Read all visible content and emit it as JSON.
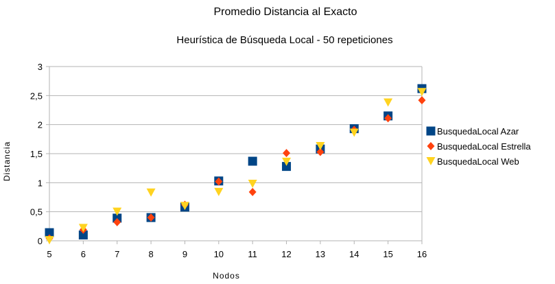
{
  "chart_data": {
    "type": "scatter",
    "title": "Promedio Distancia al Exacto",
    "subtitle": "Heurística de Búsqueda Local -  50 repeticiones",
    "xlabel": "Nodos",
    "ylabel": "Distancia",
    "x": [
      5,
      6,
      7,
      8,
      9,
      10,
      11,
      12,
      13,
      14,
      15,
      16
    ],
    "x_tick_labels": [
      "5",
      "6",
      "7",
      "8",
      "9",
      "10",
      "11",
      "12",
      "13",
      "14",
      "15",
      "16"
    ],
    "xlim": [
      5,
      16
    ],
    "ylim": [
      0,
      3
    ],
    "y_ticks": [
      0,
      0.5,
      1,
      1.5,
      2,
      2.5,
      3
    ],
    "y_tick_labels": [
      "0",
      "0,5",
      "1",
      "1,5",
      "2",
      "2,5",
      "3"
    ],
    "grid": "horizontal",
    "legend_position": "right",
    "series": [
      {
        "name": "BusquedaLocal Azar",
        "marker": "square",
        "color": "#004586",
        "values": [
          0.14,
          0.1,
          0.39,
          0.4,
          0.58,
          1.03,
          1.37,
          1.28,
          1.58,
          1.93,
          2.15,
          2.62
        ]
      },
      {
        "name": "BusquedaLocal Estrella",
        "marker": "diamond",
        "color": "#ff420e",
        "values": [
          0.04,
          0.19,
          0.32,
          0.4,
          0.62,
          1.02,
          0.84,
          1.51,
          1.53,
          1.91,
          2.11,
          2.42
        ]
      },
      {
        "name": "BusquedaLocal Web",
        "marker": "triangle-down",
        "color": "#ffd320",
        "values": [
          0.01,
          0.22,
          0.5,
          0.83,
          0.6,
          0.84,
          0.98,
          1.36,
          1.63,
          1.86,
          2.38,
          2.56
        ]
      }
    ]
  }
}
